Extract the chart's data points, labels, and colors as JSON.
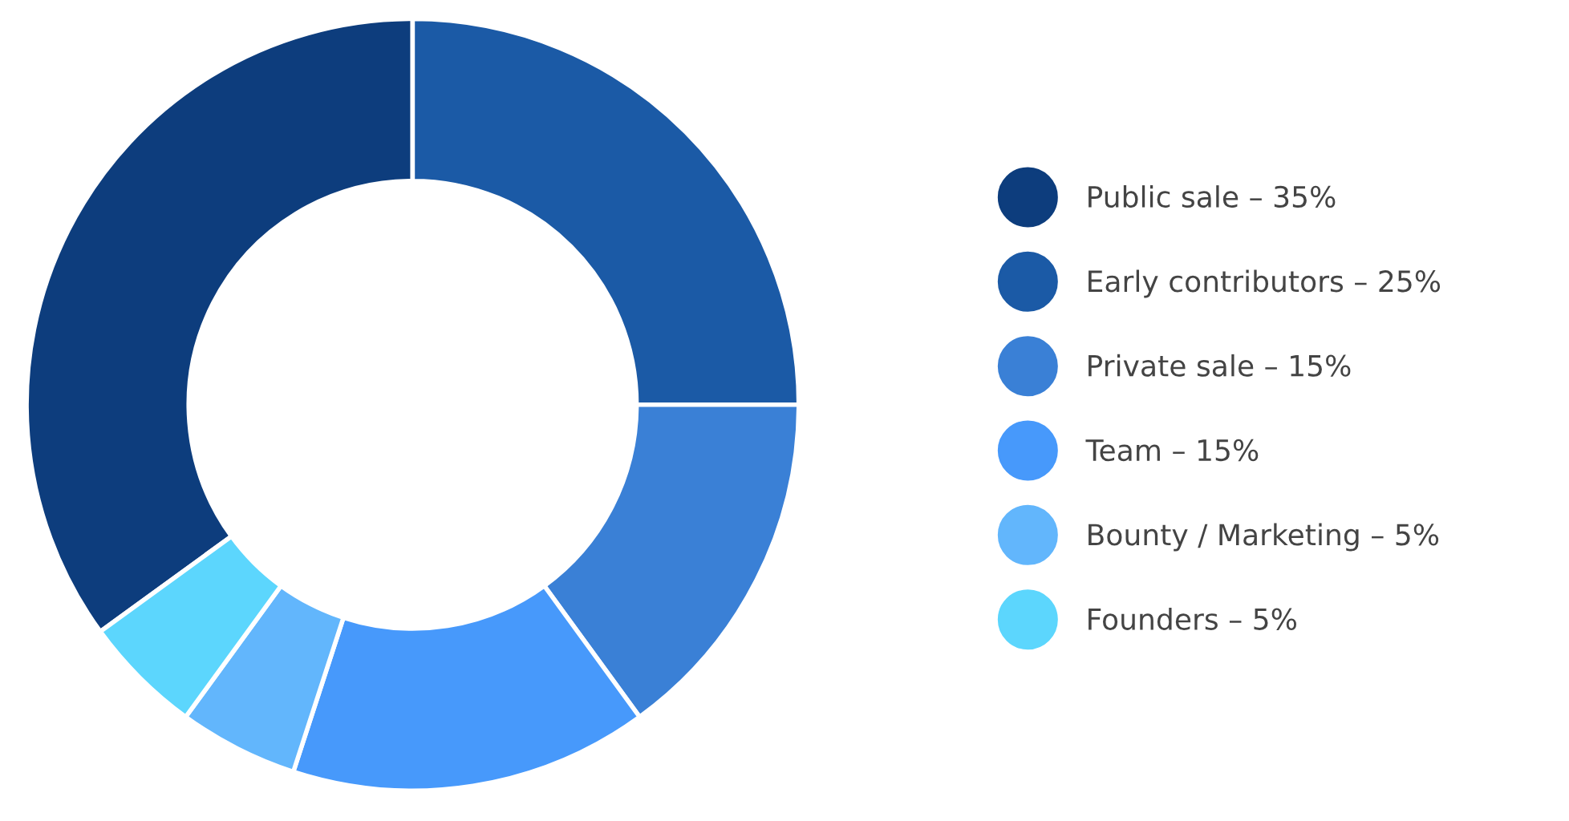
{
  "chart_data": {
    "type": "donut",
    "categories": [
      "Public sale – 35%",
      "Early contributors – 25%",
      "Private sale – 15%",
      "Team – 15%",
      "Bounty / Marketing – 5%",
      "Founders – 5%"
    ],
    "values": [
      35,
      25,
      15,
      15,
      5,
      5
    ],
    "colors": [
      "#0d3d7d",
      "#1b5aa6",
      "#3a80d6",
      "#4799fb",
      "#62b6fc",
      "#5cd6fd"
    ],
    "legend": "right"
  }
}
